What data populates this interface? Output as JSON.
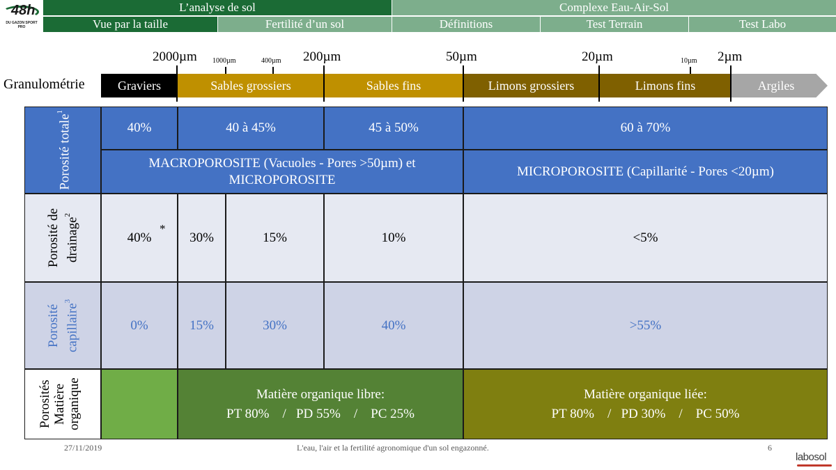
{
  "nav": {
    "logo_text": "48h",
    "logo_sub": "DU GAZON SPORT PRO",
    "row1": [
      "L’analyse  de sol",
      "Complexe Eau-Air-Sol"
    ],
    "row2": [
      "Vue par la taille",
      "Fertilité d’un sol",
      "Définitions",
      "Test Terrain",
      "Test Labo"
    ]
  },
  "scale": {
    "ticks": [
      "2000µm",
      "1000µm",
      "400µm",
      "200µm",
      "50µm",
      "20µm",
      "10µm",
      "2µm"
    ]
  },
  "granulo": {
    "label": "Granulométrie",
    "bands": [
      "Graviers",
      "Sables grossiers",
      "Sables fins",
      "Limons grossiers",
      "Limons fins",
      "Argiles"
    ],
    "colors": [
      "#000000",
      "#bf9000",
      "#bf9000",
      "#7f6000",
      "#7f6000",
      "#a6a6a6"
    ]
  },
  "table": {
    "row1": {
      "header": "Porosité totale",
      "sup": "1",
      "values": [
        "40%",
        "40 à 45%",
        "45 à 50%",
        "60 à 70%"
      ],
      "macro": "MACROPOROSITE (Vacuoles - Pores >50µm) et MICROPOROSITE",
      "micro": "MICROPOROSITE (Capillarité - Pores <20µm)"
    },
    "row2": {
      "header": "Porosité de drainage",
      "sup": "2",
      "values": [
        "40%",
        "30%",
        "15%",
        "10%",
        "<5%"
      ],
      "asterisk": "*"
    },
    "row3": {
      "header": "Porosité capillaire",
      "sup": "3",
      "values": [
        "0%",
        "15%",
        "30%",
        "40%",
        ">55%"
      ]
    },
    "row4": {
      "header": "Porosités Matière organique",
      "libre_title": "Matière organique libre:",
      "libre_values": "PT 80%    /   PD 55%    /    PC 25%",
      "liee_title": "Matière organique liée:",
      "liee_values": "PT 80%    /   PD 30%    /    PC 50%",
      "colors": {
        "green": "#70ad47",
        "libre": "#548235",
        "liee": "#7f7f10"
      }
    }
  },
  "footer": {
    "date": "27/11/2019",
    "title": "L'eau, l'air et la fertilité  agronomique  d'un sol engazonné.",
    "page": "6",
    "logo": "labosol"
  }
}
